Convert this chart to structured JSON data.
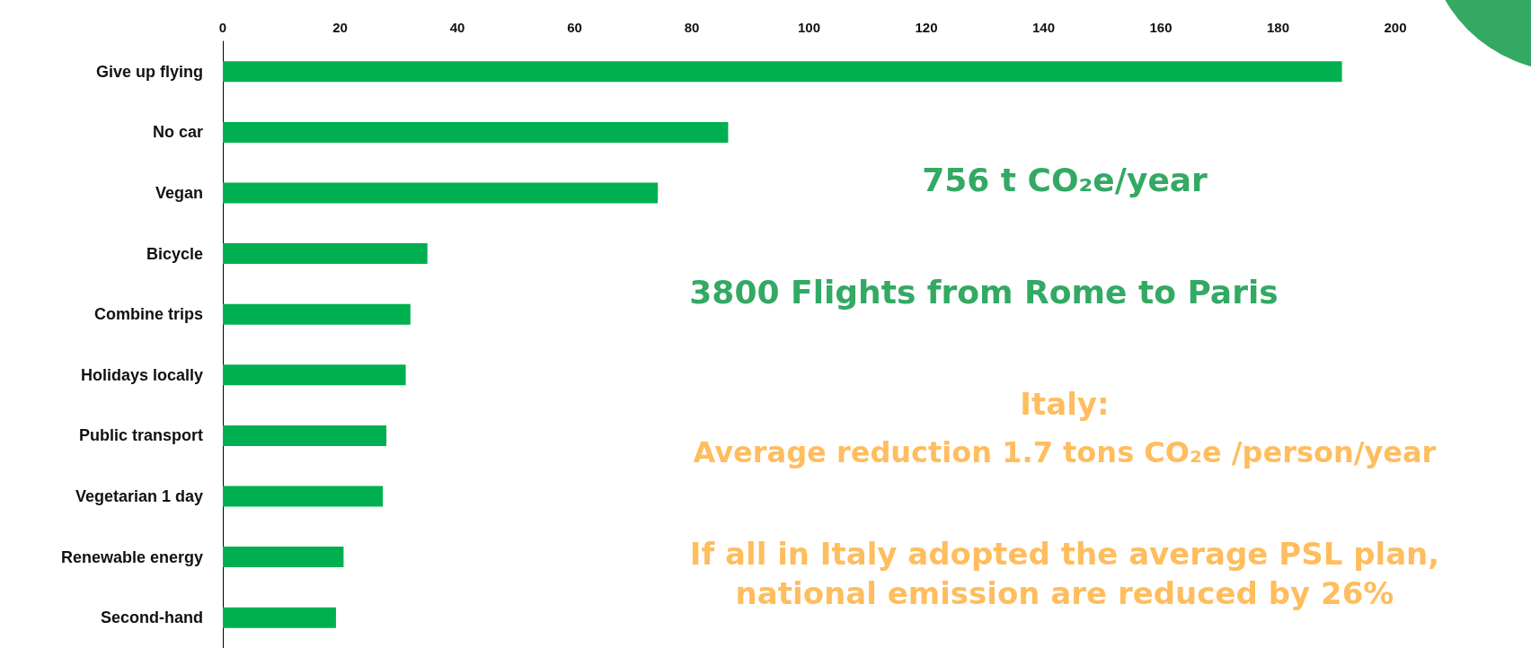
{
  "chart_data": {
    "type": "bar",
    "orientation": "horizontal",
    "categories": [
      "Give up flying",
      "No car",
      "Vegan",
      "Bicycle",
      "Combine trips",
      "Holidays locally",
      "Public transport",
      "Vegetarian 1 day",
      "Renewable energy",
      "Second-hand"
    ],
    "values": [
      190.9,
      86.2,
      74.2,
      34.9,
      32.0,
      31.2,
      27.9,
      27.3,
      20.6,
      19.3
    ],
    "color": "#00b050",
    "xlim": [
      0,
      200
    ],
    "xticks": [
      0,
      20,
      40,
      60,
      80,
      100,
      120,
      140,
      160,
      180,
      200
    ],
    "annotations": [
      "756 t CO₂e/year",
      "3800 Flights from Rome to Paris",
      "Italy:",
      "Average reduction 1.7 tons CO₂e /person/year",
      "If all in Italy adopted the average PSL plan, national emission are reduced by 26%"
    ]
  }
}
